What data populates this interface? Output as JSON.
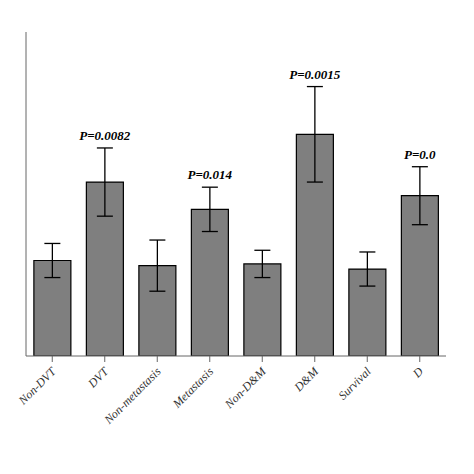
{
  "chart_data": {
    "type": "bar",
    "categories": [
      "Non-DVT",
      "DVT",
      "Non-metastasis",
      "Metastasis",
      "Non-D&M",
      "D&M",
      "Survival",
      "D"
    ],
    "values": [
      2.8,
      5.1,
      2.65,
      4.3,
      2.7,
      6.5,
      2.55,
      4.7
    ],
    "errors": [
      0.5,
      1.0,
      0.75,
      0.65,
      0.4,
      1.4,
      0.5,
      0.85
    ],
    "color": "#7f7f7f",
    "ylim": [
      0,
      9.5
    ],
    "tick_labels": "x",
    "grid": false,
    "annotations": [
      {
        "text": "P=0.0082",
        "x": "DVT"
      },
      {
        "text": "P=0.014",
        "x": "Metastasis"
      },
      {
        "text": "P=0.0015",
        "x": "D&M"
      },
      {
        "text": "P=0.0",
        "x": "D"
      }
    ]
  }
}
